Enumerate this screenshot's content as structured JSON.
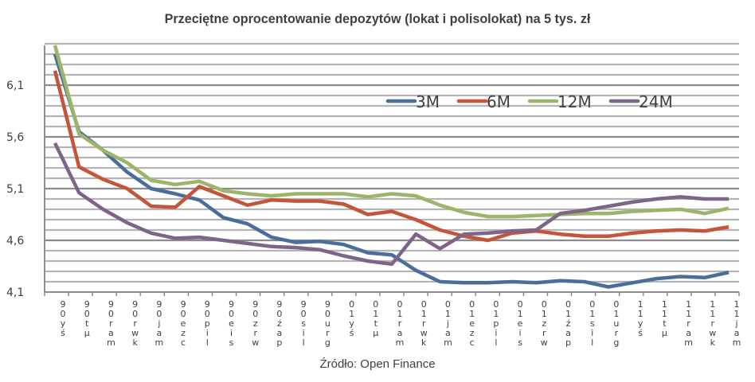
{
  "title": "Przeciętne oprocentowanie depozytów (lokat i polisolokat) na 5 tys. zł",
  "source": "Źródło: Open Finance",
  "colors": {
    "3M": "#4a6e9b",
    "6M": "#c4553a",
    "12M": "#9bb56a",
    "24M": "#7e6487",
    "grid_major": "#8c8c8c",
    "grid_minor": "#b4b4b4"
  },
  "chart_data": {
    "type": "line",
    "title": "Przeciętne oprocentowanie depozytów (lokat i polisolokat) na 5 tys. zł",
    "xlabel": "",
    "ylabel": "",
    "ylim": [
      4.1,
      6.5
    ],
    "yticks": [
      "4,1",
      "4,6",
      "5,1",
      "5,6",
      "6,1"
    ],
    "grid": true,
    "legend_position": "inside top-right",
    "categories": [
      "sty 09",
      "lut 09",
      "mar 09",
      "kwi 09",
      "maj 09",
      "cze 09",
      "lip 09",
      "sie 09",
      "wrz 09",
      "paź 09",
      "lis 09",
      "gru 09",
      "sty 10",
      "lut 10",
      "mar 10",
      "kwi 10",
      "maj 10",
      "cze 10",
      "lip 10",
      "sie 10",
      "wrz 10",
      "paź 10",
      "lis 10",
      "gru 10",
      "sty 11",
      "lut 11",
      "mar 11",
      "kwi 11",
      "maj 11"
    ],
    "x_tick_labels_rendered": [
      "9 0 y ś",
      "9 0 t μ",
      "9 0 r a m",
      "9 0 r w k",
      "9 0 j a m",
      "9 0 e z c",
      "9 0 p i l",
      "9 0 e i s",
      "9 0 z r w",
      "9 0 ź a p",
      "9 0 s i l",
      "9 0 u r g",
      "0 1 y ś",
      "0 1 t μ",
      "0 1 r a m",
      "0 1 r w k",
      "0 1 j a m",
      "0 1 e z c",
      "0 1 p i l",
      "0 1 e i s",
      "0 1 z r w",
      "0 1 ź a p",
      "0 1 s i l",
      "0 1 u r g",
      "1 1 y ś",
      "1 1 t μ",
      "1 1 r a m",
      "1 1 r w k",
      "1 1 j a m"
    ],
    "series": [
      {
        "name": "3M",
        "values": [
          6.4,
          5.65,
          5.47,
          5.26,
          5.1,
          5.05,
          4.99,
          4.82,
          4.76,
          4.63,
          4.58,
          4.59,
          4.56,
          4.48,
          4.46,
          4.31,
          4.2,
          4.19,
          4.19,
          4.2,
          4.19,
          4.21,
          4.2,
          4.15,
          4.19,
          4.23,
          4.25,
          4.24,
          4.29
        ]
      },
      {
        "name": "6M",
        "values": [
          6.24,
          5.31,
          5.19,
          5.1,
          4.93,
          4.92,
          5.12,
          5.03,
          4.94,
          4.99,
          4.98,
          4.98,
          4.95,
          4.85,
          4.88,
          4.8,
          4.7,
          4.64,
          4.6,
          4.67,
          4.69,
          4.66,
          4.64,
          4.64,
          4.67,
          4.69,
          4.7,
          4.69,
          4.73
        ]
      },
      {
        "name": "12M",
        "values": [
          6.53,
          5.63,
          5.47,
          5.35,
          5.18,
          5.14,
          5.17,
          5.08,
          5.05,
          5.03,
          5.05,
          5.05,
          5.05,
          5.02,
          5.05,
          5.03,
          4.94,
          4.87,
          4.83,
          4.83,
          4.84,
          4.85,
          4.86,
          4.86,
          4.88,
          4.89,
          4.9,
          4.86,
          4.91
        ]
      },
      {
        "name": "24M",
        "values": [
          5.54,
          5.06,
          4.9,
          4.77,
          4.67,
          4.62,
          4.63,
          4.6,
          4.57,
          4.54,
          4.53,
          4.51,
          4.45,
          4.4,
          4.37,
          4.66,
          4.52,
          4.66,
          4.67,
          4.69,
          4.7,
          4.86,
          4.89,
          4.93,
          4.97,
          5.0,
          5.02,
          5.0,
          5.0
        ]
      }
    ]
  },
  "legend": {
    "items": [
      "3M",
      "6M",
      "12M",
      "24M"
    ]
  }
}
